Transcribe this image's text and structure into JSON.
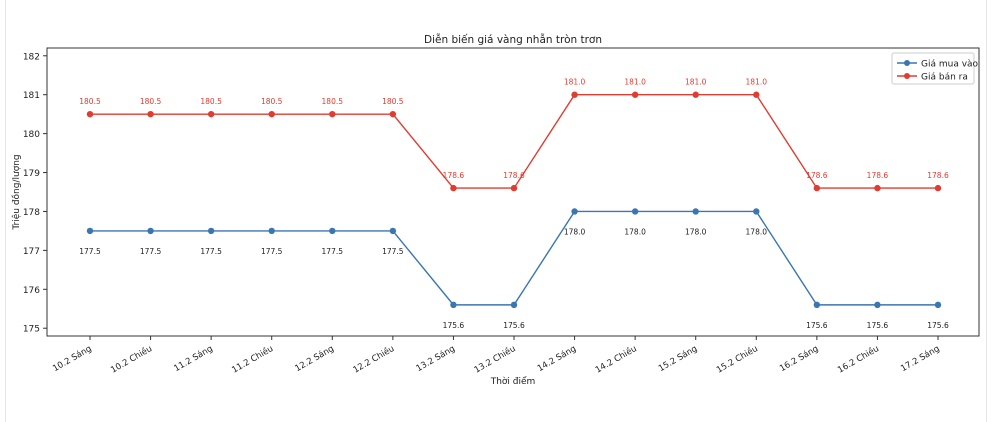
{
  "chart_data": {
    "type": "line",
    "title": "Diễn biến giá vàng nhẫn tròn trơn",
    "xlabel": "Thời điểm",
    "ylabel": "Triệu đồng/lượng",
    "categories": [
      "10.2 Sáng",
      "10.2 Chiều",
      "11.2 Sáng",
      "11.2 Chiều",
      "12.2 Sáng",
      "12.2 Chiều",
      "13.2 Sáng",
      "13.2 Chiều",
      "14.2 Sáng",
      "14.2 Chiều",
      "15.2 Sáng",
      "15.2 Chiều",
      "16.2 Sáng",
      "16.2 Chiều",
      "17.2 Sáng"
    ],
    "yticks": [
      175,
      176,
      177,
      178,
      179,
      180,
      181,
      182
    ],
    "ylim": [
      174.8,
      182.2
    ],
    "grid": false,
    "legend": "top-right",
    "series": [
      {
        "name": "Giá mua vào",
        "color": "#3a76b0",
        "label_position": "below",
        "values": [
          177.5,
          177.5,
          177.5,
          177.5,
          177.5,
          177.5,
          175.6,
          175.6,
          178.0,
          178.0,
          178.0,
          178.0,
          175.6,
          175.6,
          175.6
        ]
      },
      {
        "name": "Giá bán ra",
        "color": "#e03c31",
        "label_position": "above",
        "values": [
          180.5,
          180.5,
          180.5,
          180.5,
          180.5,
          180.5,
          178.6,
          178.6,
          181.0,
          181.0,
          181.0,
          181.0,
          178.6,
          178.6,
          178.6
        ]
      }
    ]
  }
}
